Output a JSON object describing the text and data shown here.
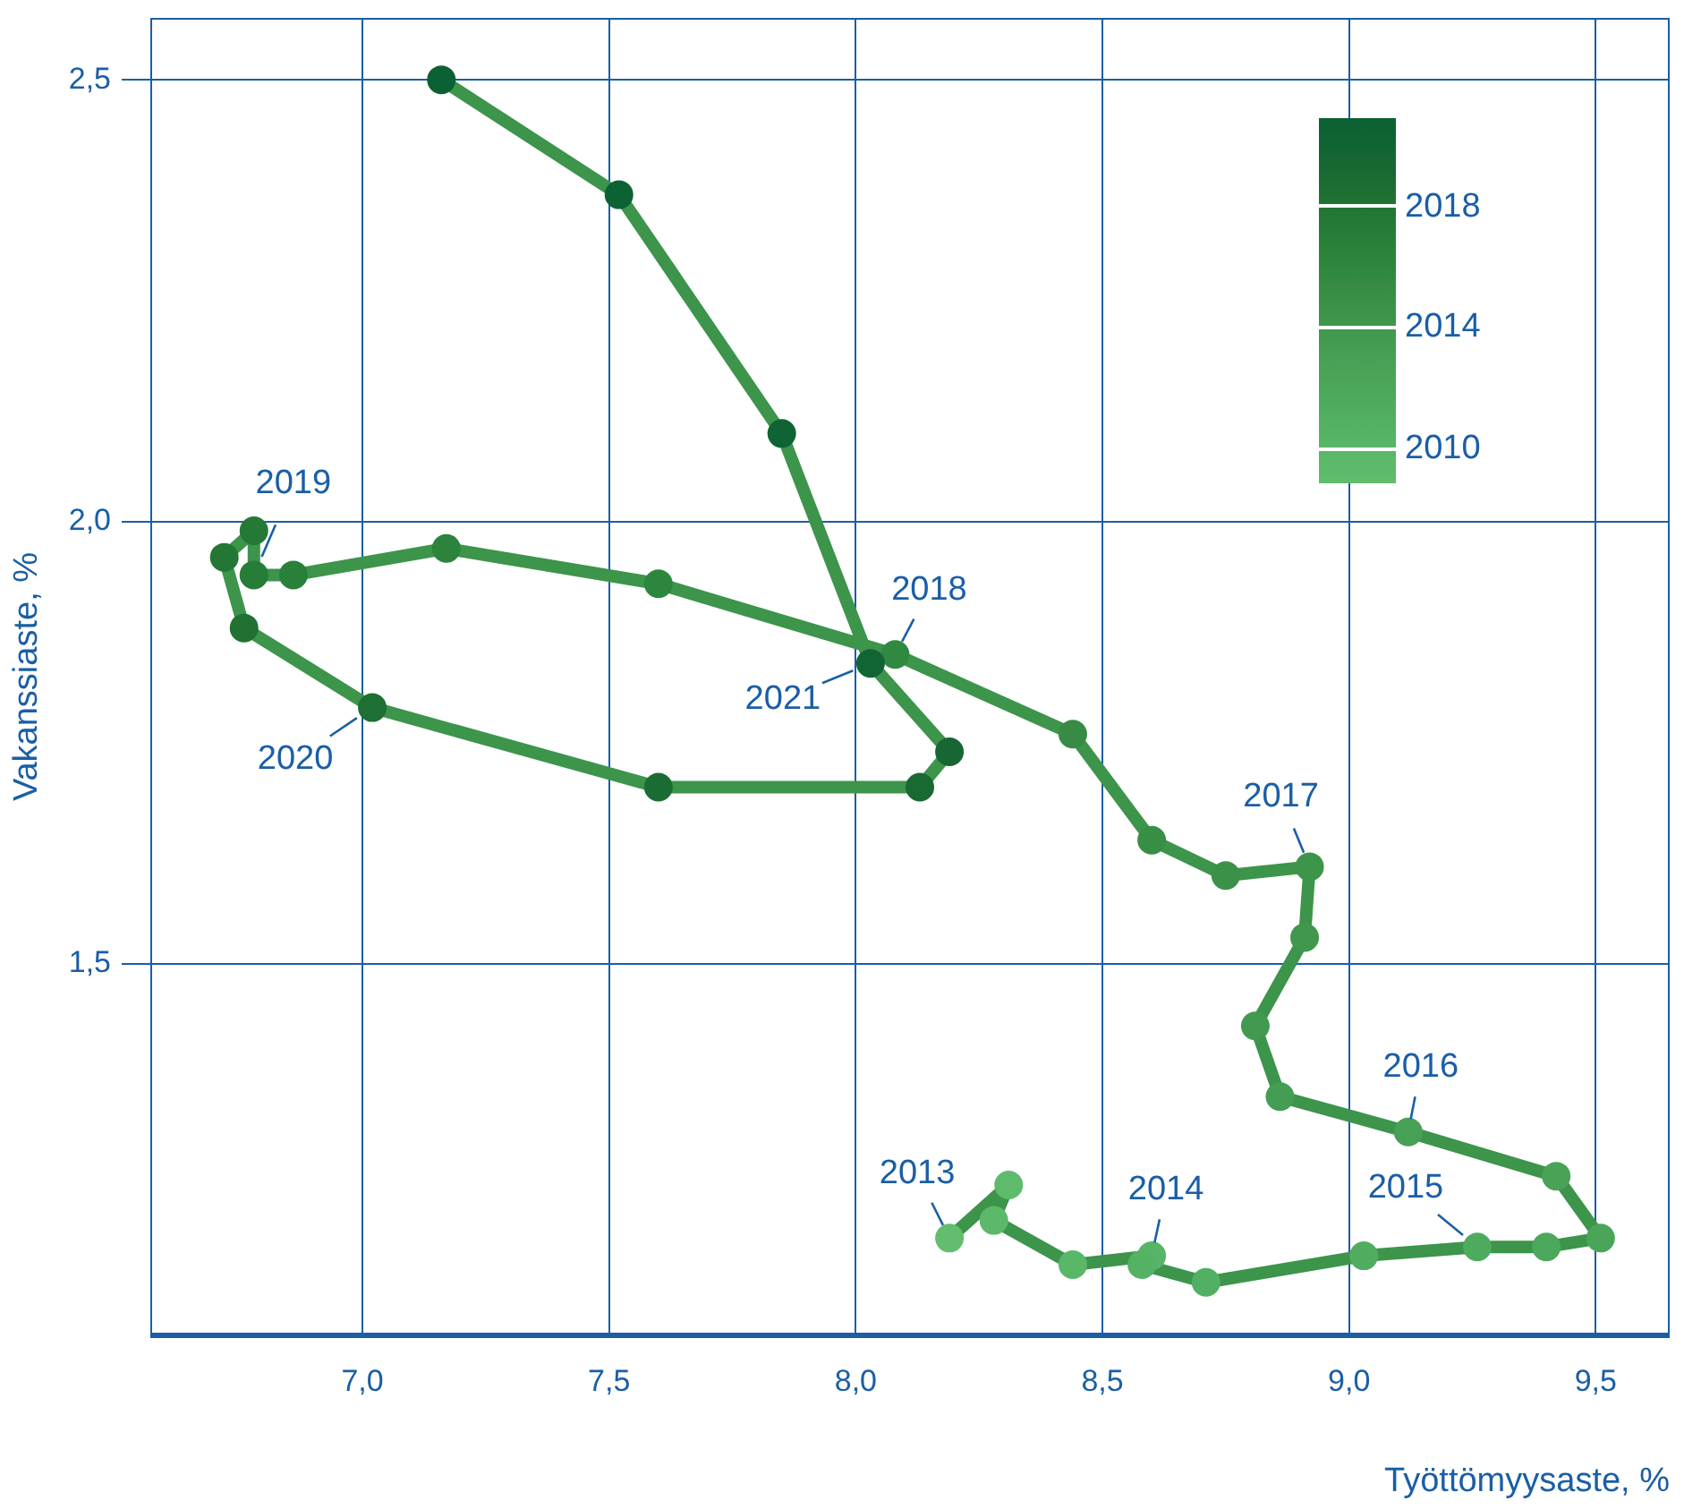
{
  "chart_data": {
    "type": "line",
    "xlabel": "Työttömyysaste, %",
    "ylabel": "Vakanssiaste, %",
    "marker": "circle",
    "line_style": "solid",
    "grid": true,
    "legend": false,
    "xlim": [
      6.57,
      9.65
    ],
    "ylim": [
      1.08,
      2.57
    ],
    "xticks": [
      {
        "value": 7.0,
        "label": "7,0"
      },
      {
        "value": 7.5,
        "label": "7,5"
      },
      {
        "value": 8.0,
        "label": "8,0"
      },
      {
        "value": 8.5,
        "label": "8,5"
      },
      {
        "value": 9.0,
        "label": "9,0"
      },
      {
        "value": 9.5,
        "label": "9,5"
      }
    ],
    "yticks": [
      {
        "value": 1.5,
        "label": "1,5"
      },
      {
        "value": 2.0,
        "label": "2,0"
      },
      {
        "value": 2.5,
        "label": "2,5"
      }
    ],
    "series": [
      {
        "color": "#3d944b",
        "x": [
          8.19,
          8.31,
          8.28,
          8.44,
          8.6,
          8.58,
          8.71,
          9.03,
          9.26,
          9.4,
          9.51,
          9.42,
          9.12,
          8.86,
          8.81,
          8.91,
          8.92,
          8.75,
          8.6,
          8.44,
          8.08,
          7.6,
          7.17,
          6.86,
          6.78,
          6.78,
          6.72,
          6.76,
          7.02,
          7.6,
          8.13,
          8.19,
          8.03,
          7.85,
          7.52,
          7.16
        ],
        "values": [
          1.19,
          1.25,
          1.21,
          1.16,
          1.17,
          1.16,
          1.14,
          1.17,
          1.18,
          1.18,
          1.19,
          1.26,
          1.31,
          1.35,
          1.43,
          1.53,
          1.61,
          1.6,
          1.64,
          1.76,
          1.85,
          1.93,
          1.97,
          1.94,
          1.94,
          1.99,
          1.96,
          1.88,
          1.79,
          1.7,
          1.7,
          1.74,
          1.84,
          2.1,
          2.37,
          2.5
        ],
        "colors": [
          "#62bd6e",
          "#5fbb6c",
          "#5cb96a",
          "#59b768",
          "#56b566",
          "#54b264",
          "#52b062",
          "#50ad60",
          "#4eab5e",
          "#4ca85b",
          "#4aa559",
          "#48a357",
          "#46a055",
          "#449d52",
          "#429a50",
          "#40974d",
          "#3d944b",
          "#3b9148",
          "#398e46",
          "#378b44",
          "#2f8940",
          "#2d863e",
          "#2b833c",
          "#29803a",
          "#277c38",
          "#257936",
          "#237634",
          "#217232",
          "#1d6f33",
          "#1b6c33",
          "#196933",
          "#176633",
          "#116534",
          "#0f6334",
          "#0d6234",
          "#0b6134"
        ]
      }
    ],
    "annotations": [
      {
        "text": "2013",
        "x": 8.19,
        "y": 1.19
      },
      {
        "text": "2014",
        "x": 8.6,
        "y": 1.17
      },
      {
        "text": "2015",
        "x": 9.26,
        "y": 1.18
      },
      {
        "text": "2016",
        "x": 9.12,
        "y": 1.31
      },
      {
        "text": "2017",
        "x": 8.92,
        "y": 1.61
      },
      {
        "text": "2018",
        "x": 8.08,
        "y": 1.85
      },
      {
        "text": "2019",
        "x": 6.78,
        "y": 1.94
      },
      {
        "text": "2020",
        "x": 7.02,
        "y": 1.79
      },
      {
        "text": "2021",
        "x": 8.03,
        "y": 1.84
      },
      "2018",
      "2014",
      "2010"
    ]
  }
}
